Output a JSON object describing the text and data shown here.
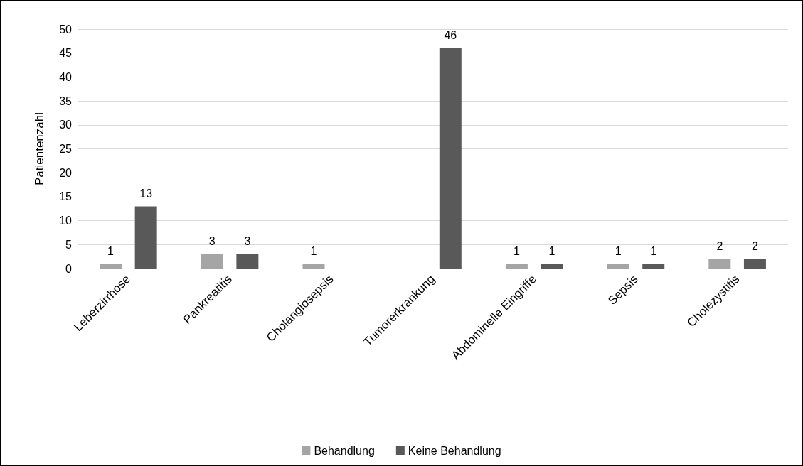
{
  "chart_data": {
    "type": "bar",
    "ylabel": "Patientenzahl",
    "categories": [
      "Leberzirrhose",
      "Pankreatitis",
      "Cholangiosepsis",
      "Tumorerkrankung",
      "Abdominelle Eingriffe",
      "Sepsis",
      "Cholezystitis"
    ],
    "series": [
      {
        "name": "Behandlung",
        "color": "#a5a5a5",
        "values": [
          1,
          3,
          1,
          null,
          1,
          1,
          2
        ]
      },
      {
        "name": "Keine Behandlung",
        "color": "#595959",
        "values": [
          13,
          3,
          null,
          46,
          1,
          1,
          2
        ]
      }
    ],
    "ylim": [
      0,
      50
    ],
    "yticks": [
      0,
      5,
      10,
      15,
      20,
      25,
      30,
      35,
      40,
      45,
      50
    ],
    "grid": "y",
    "legend": "bottom",
    "data_labels": true
  }
}
